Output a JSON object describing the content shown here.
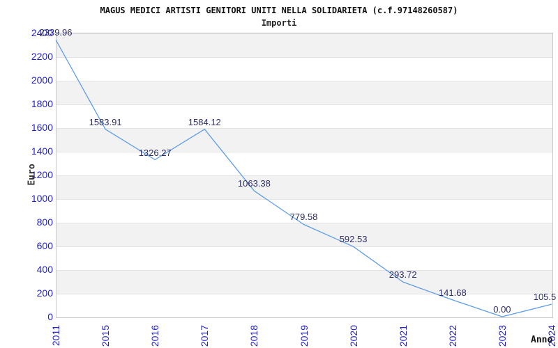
{
  "header": {
    "title": "MAGUS MEDICI ARTISTI GENITORI UNITI NELLA SOLIDARIETA (c.f.97148260587)",
    "subtitle": "Importi"
  },
  "chart_data": {
    "type": "line",
    "title": "MAGUS MEDICI ARTISTI GENITORI UNITI NELLA SOLIDARIETA (c.f.97148260587)",
    "subtitle": "Importi",
    "xlabel": "Anno",
    "ylabel": "Euro",
    "categories": [
      "2011",
      "2015",
      "2016",
      "2017",
      "2018",
      "2019",
      "2020",
      "2021",
      "2022",
      "2023",
      "2024"
    ],
    "values": [
      2339.96,
      1583.91,
      1326.27,
      1584.12,
      1063.38,
      779.58,
      592.53,
      293.72,
      141.68,
      0.0,
      105.5
    ],
    "value_labels": [
      "2339.96",
      "1583.91",
      "1326.27",
      "1584.12",
      "1063.38",
      "779.58",
      "592.53",
      "293.72",
      "141.68",
      "0.00",
      "105.5"
    ],
    "y_ticks": [
      2400,
      2200,
      2000,
      1800,
      1600,
      1400,
      1200,
      1000,
      800,
      600,
      400,
      200,
      0
    ],
    "ylim": [
      0,
      2400
    ],
    "grid": "horizontal alternating bands",
    "legend": "none",
    "colors": {
      "line": "#5e9de8",
      "tick_labels": "#2222cc",
      "value_labels": "#2b2b66",
      "band_gray": "#f2f2f2",
      "plot_border": "#c6c6c6"
    }
  }
}
